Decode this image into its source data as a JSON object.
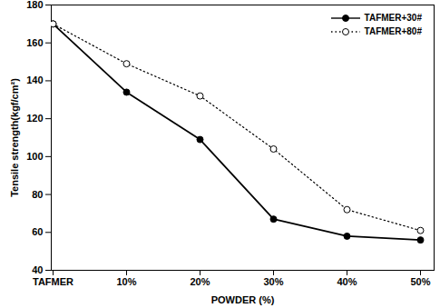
{
  "chart_data": {
    "type": "line",
    "x_label": "POWDER (%)",
    "y_label": "Tensile strength(kgf/cm²)",
    "categories": [
      "TAFMER",
      "10%",
      "20%",
      "30%",
      "40%",
      "50%"
    ],
    "series": [
      {
        "name": "TAFMER+30#",
        "color": "#000000",
        "marker": "circle",
        "line_style": "solid",
        "values": [
          170,
          134,
          109,
          67,
          58,
          56
        ]
      },
      {
        "name": "TAFMER+80#",
        "color": "#000000",
        "marker": "open_circle",
        "line_style": "dotted",
        "values": [
          170,
          149,
          132,
          104,
          72,
          61
        ]
      }
    ],
    "ylim": [
      40,
      180
    ],
    "yticks": [
      40,
      60,
      80,
      100,
      120,
      140,
      160,
      180
    ],
    "grid": false,
    "legend": "upper right"
  }
}
